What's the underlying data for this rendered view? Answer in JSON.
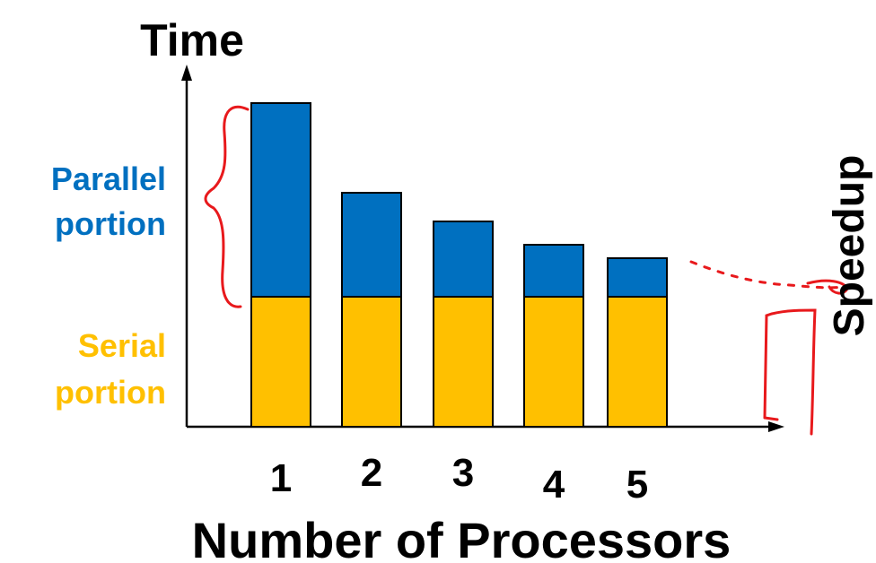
{
  "chart_data": {
    "type": "bar",
    "stacked": true,
    "ylabel": "Time",
    "xlabel": "Number of Processors",
    "categories": [
      "1",
      "2",
      "3",
      "4",
      "5"
    ],
    "series": [
      {
        "name": "Serial portion",
        "color": "#FFC000",
        "values": [
          145,
          145,
          145,
          145,
          145
        ]
      },
      {
        "name": "Parallel portion",
        "color": "#0070C0",
        "values": [
          216,
          116,
          84,
          58,
          43
        ]
      }
    ],
    "ylim": [
      0,
      380
    ],
    "grid": false,
    "legend": "left",
    "annotation": "Speedup",
    "colors": {
      "annotation_ink": "#E8191C",
      "axis": "#000000",
      "bar_edge": "#000000"
    }
  }
}
